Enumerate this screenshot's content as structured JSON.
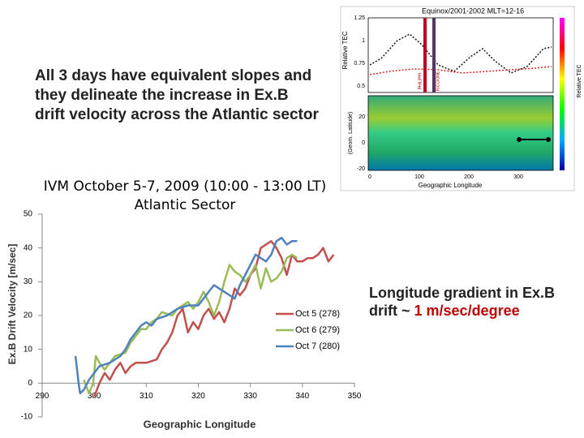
{
  "slide": {
    "heading": "All 3 days have equivalent slopes and they delineate the increase in Ex.B drift velocity across the Atlantic sector",
    "note_text": "Longitude gradient in Ex.B drift ~ ",
    "note_highlight": "1 m/sec/degree"
  },
  "inset": {
    "title": "Equinox/2001-2002  MLT=12-16",
    "left_label": "Relative TEC",
    "right_label": "Relative TEC",
    "lat_label": "(Geom. Latitude)",
    "x_label": "Geographic Longitude",
    "site_1": "PHILIPPI",
    "site_2": "RICCIONE",
    "top_ticks": [
      "1.25",
      "1",
      "0.75",
      "0.5"
    ],
    "bottom_ticks": [
      "20",
      "0",
      "-20"
    ],
    "x_ticks": [
      "0",
      "100",
      "200",
      "300"
    ]
  },
  "chart_data": {
    "type": "line",
    "title": "IVM October 5-7, 2009 (10:00 - 13:00 LT)",
    "subtitle": "Atlantic Sector",
    "xlabel": "Geographic Longitude",
    "ylabel": "Ex.B Drift Velocity [m/sec]",
    "xlim": [
      290,
      350
    ],
    "ylim": [
      -10,
      50
    ],
    "xticks": [
      290,
      300,
      310,
      320,
      330,
      340,
      350
    ],
    "yticks": [
      -10,
      0,
      10,
      20,
      30,
      40,
      50
    ],
    "series": [
      {
        "name": "Oct 5 (278)",
        "color": "#c0504d",
        "x": [
          300,
          301,
          302,
          303,
          304,
          305,
          306,
          307,
          308,
          310,
          312,
          313,
          314,
          315,
          316,
          317,
          318,
          319,
          320,
          321,
          322,
          323,
          324,
          325,
          326,
          327,
          328,
          329,
          330,
          331,
          332,
          333,
          334,
          335,
          336,
          337,
          338,
          339,
          340,
          341,
          342,
          343,
          344,
          345,
          346
        ],
        "values": [
          -4,
          0,
          3,
          1,
          4,
          6,
          3,
          5,
          6,
          6,
          7,
          10,
          12,
          15,
          20,
          22,
          15,
          18,
          16,
          20,
          22,
          19,
          21,
          18,
          22,
          28,
          26,
          28,
          32,
          34,
          40,
          41,
          42,
          40,
          37,
          32,
          38,
          36,
          36,
          37,
          37,
          38,
          40,
          36,
          38
        ]
      },
      {
        "name": "Oct 6 (279)",
        "color": "#9bbb59",
        "x": [
          298,
          299,
          299.8,
          300.3,
          301,
          302,
          303,
          304,
          306,
          307,
          309,
          310,
          311,
          312,
          313,
          315,
          316,
          317,
          318,
          319,
          320,
          321,
          322,
          323,
          324,
          325,
          326,
          327,
          328,
          329,
          330,
          331,
          332,
          333,
          334,
          335,
          336,
          337,
          338,
          339
        ],
        "values": [
          1,
          -3,
          0,
          8,
          6,
          4,
          6,
          8,
          9,
          12,
          16,
          16,
          18,
          19,
          21,
          20,
          22,
          23,
          24,
          22,
          24,
          27,
          24,
          20,
          24,
          30,
          35,
          33,
          32,
          30,
          32,
          35,
          28,
          34,
          30,
          31,
          33,
          37,
          38,
          37
        ]
      },
      {
        "name": "Oct 7 (280)",
        "color": "#4f81bd",
        "x": [
          296.4,
          297,
          297.3,
          298,
          299,
          300,
          301,
          303,
          305,
          306,
          307,
          308,
          309,
          310,
          311,
          312,
          314,
          316,
          318,
          320,
          321,
          322,
          323,
          324,
          325,
          326,
          327,
          328,
          329,
          330,
          331,
          332,
          333,
          334,
          335,
          336,
          337,
          338,
          339
        ],
        "values": [
          8,
          0,
          -3,
          -2,
          1,
          3,
          5,
          6,
          8,
          10,
          13,
          15,
          17,
          18,
          17,
          19,
          20,
          22,
          23,
          23,
          25,
          27,
          29,
          28,
          27,
          26,
          25,
          29,
          32,
          35,
          38,
          37,
          36,
          38,
          42,
          43,
          41,
          42,
          42
        ]
      }
    ]
  }
}
